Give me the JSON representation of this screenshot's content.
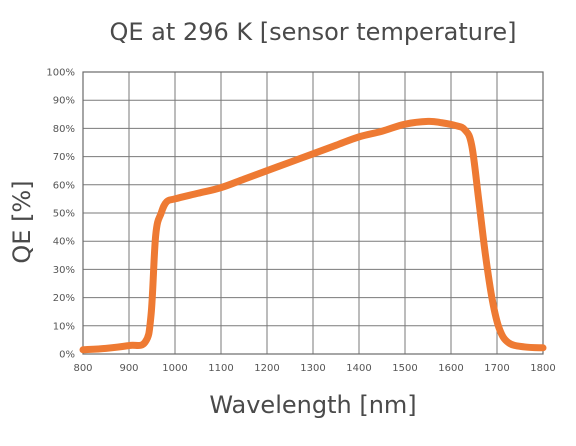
{
  "chart_data": {
    "type": "line",
    "title": "QE at 296 K [sensor temperature]",
    "xlabel": "Wavelength [nm]",
    "ylabel": "QE [%]",
    "xlim": [
      800,
      1800
    ],
    "ylim": [
      0,
      100
    ],
    "x_ticks": [
      800,
      900,
      1000,
      1100,
      1200,
      1300,
      1400,
      1500,
      1600,
      1700,
      1800
    ],
    "y_ticks": [
      0,
      10,
      20,
      30,
      40,
      50,
      60,
      70,
      80,
      90,
      100
    ],
    "y_tick_labels": [
      "0%",
      "10%",
      "20%",
      "30%",
      "40%",
      "50%",
      "60%",
      "70%",
      "80%",
      "90%",
      "100%"
    ],
    "grid": true,
    "series": [
      {
        "color": "#EE7A33",
        "points": [
          [
            800,
            1.5
          ],
          [
            850,
            2.0
          ],
          [
            900,
            3.0
          ],
          [
            935,
            4.2
          ],
          [
            948,
            14
          ],
          [
            958,
            42
          ],
          [
            970,
            50
          ],
          [
            982,
            54
          ],
          [
            1000,
            55
          ],
          [
            1050,
            57
          ],
          [
            1100,
            59
          ],
          [
            1150,
            62
          ],
          [
            1200,
            65
          ],
          [
            1250,
            68
          ],
          [
            1300,
            71
          ],
          [
            1350,
            74
          ],
          [
            1400,
            77
          ],
          [
            1450,
            79
          ],
          [
            1500,
            81.5
          ],
          [
            1550,
            82.5
          ],
          [
            1580,
            82
          ],
          [
            1610,
            81
          ],
          [
            1630,
            79.5
          ],
          [
            1645,
            74
          ],
          [
            1660,
            55
          ],
          [
            1675,
            35
          ],
          [
            1690,
            19
          ],
          [
            1705,
            9
          ],
          [
            1725,
            4
          ],
          [
            1760,
            2.5
          ],
          [
            1800,
            2.2
          ]
        ]
      }
    ]
  }
}
